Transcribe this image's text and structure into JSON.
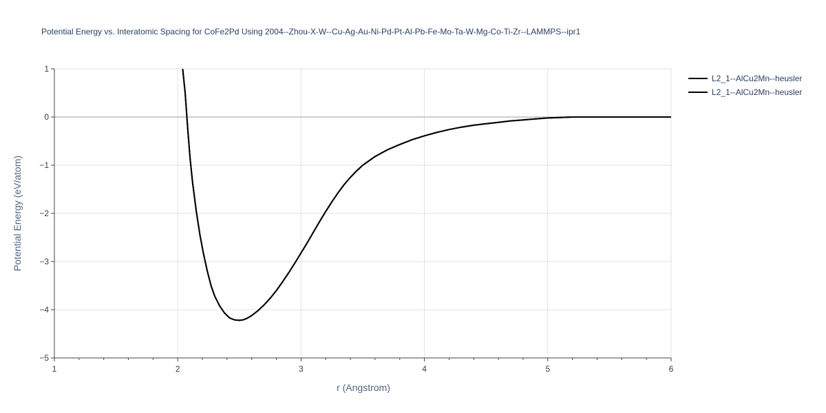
{
  "chart_data": {
    "type": "line",
    "title": "Potential Energy vs. Interatomic Spacing for CoFe2Pd Using 2004--Zhou-X-W--Cu-Ag-Au-Ni-Pd-Pt-Al-Pb-Fe-Mo-Ta-W-Mg-Co-Ti-Zr--LAMMPS--ipr1",
    "xlabel": "r (Angstrom)",
    "ylabel": "Potential Energy (eV/atom)",
    "xlim": [
      1,
      6
    ],
    "ylim": [
      -5,
      1
    ],
    "x_ticks": [
      "1",
      "2",
      "3",
      "4",
      "5",
      "6"
    ],
    "y_ticks": [
      "1",
      "0",
      "−1",
      "−2",
      "−3",
      "−4",
      "−5"
    ],
    "grid": true,
    "legend_position": "top-right",
    "series": [
      {
        "name": "L2_1--AlCu2Mn--heusler",
        "color": "#000000",
        "x": [
          2.04,
          2.06,
          2.08,
          2.1,
          2.12,
          2.15,
          2.18,
          2.21,
          2.24,
          2.27,
          2.3,
          2.34,
          2.38,
          2.42,
          2.46,
          2.5,
          2.53,
          2.56,
          2.6,
          2.65,
          2.7,
          2.75,
          2.8,
          2.85,
          2.9,
          2.95,
          3.0,
          3.05,
          3.1,
          3.15,
          3.2,
          3.25,
          3.3,
          3.35,
          3.4,
          3.45,
          3.5,
          3.6,
          3.7,
          3.8,
          3.9,
          4.0,
          4.1,
          4.2,
          4.3,
          4.4,
          4.5,
          4.6,
          4.7,
          4.8,
          4.9,
          5.0,
          5.1,
          5.2,
          5.3,
          5.5,
          5.8,
          6.0
        ],
        "y": [
          1.0,
          0.5,
          -0.2,
          -0.85,
          -1.35,
          -1.95,
          -2.45,
          -2.85,
          -3.2,
          -3.5,
          -3.72,
          -3.92,
          -4.07,
          -4.17,
          -4.21,
          -4.22,
          -4.21,
          -4.18,
          -4.12,
          -4.02,
          -3.9,
          -3.76,
          -3.6,
          -3.42,
          -3.23,
          -3.03,
          -2.82,
          -2.61,
          -2.39,
          -2.17,
          -1.96,
          -1.76,
          -1.57,
          -1.4,
          -1.25,
          -1.12,
          -1.0,
          -0.82,
          -0.68,
          -0.57,
          -0.47,
          -0.39,
          -0.32,
          -0.26,
          -0.21,
          -0.17,
          -0.14,
          -0.11,
          -0.08,
          -0.06,
          -0.04,
          -0.02,
          -0.01,
          0.0,
          0.0,
          0.0,
          0.0,
          0.0
        ]
      },
      {
        "name": "L2_1--AlCu2Mn--heusler",
        "color": "#000000",
        "x": [
          2.04,
          2.06,
          2.08,
          2.1,
          2.12,
          2.15,
          2.18,
          2.21,
          2.24,
          2.27,
          2.3,
          2.34,
          2.38,
          2.42,
          2.46,
          2.5,
          2.53,
          2.56,
          2.6,
          2.65,
          2.7,
          2.75,
          2.8,
          2.85,
          2.9,
          2.95,
          3.0,
          3.05,
          3.1,
          3.15,
          3.2,
          3.25,
          3.3,
          3.35,
          3.4,
          3.45,
          3.5,
          3.6,
          3.7,
          3.8,
          3.9,
          4.0,
          4.1,
          4.2,
          4.3,
          4.4,
          4.5,
          4.6,
          4.7,
          4.8,
          4.9,
          5.0,
          5.1,
          5.2,
          5.3,
          5.5,
          5.8,
          6.0
        ],
        "y": [
          1.0,
          0.5,
          -0.2,
          -0.85,
          -1.35,
          -1.95,
          -2.45,
          -2.85,
          -3.2,
          -3.5,
          -3.72,
          -3.92,
          -4.07,
          -4.17,
          -4.21,
          -4.22,
          -4.21,
          -4.18,
          -4.12,
          -4.02,
          -3.9,
          -3.76,
          -3.6,
          -3.42,
          -3.23,
          -3.03,
          -2.82,
          -2.61,
          -2.39,
          -2.17,
          -1.96,
          -1.76,
          -1.57,
          -1.4,
          -1.25,
          -1.12,
          -1.0,
          -0.82,
          -0.68,
          -0.57,
          -0.47,
          -0.39,
          -0.32,
          -0.26,
          -0.21,
          -0.17,
          -0.14,
          -0.11,
          -0.08,
          -0.06,
          -0.04,
          -0.02,
          -0.01,
          0.0,
          0.0,
          0.0,
          0.0,
          0.0
        ]
      }
    ]
  }
}
